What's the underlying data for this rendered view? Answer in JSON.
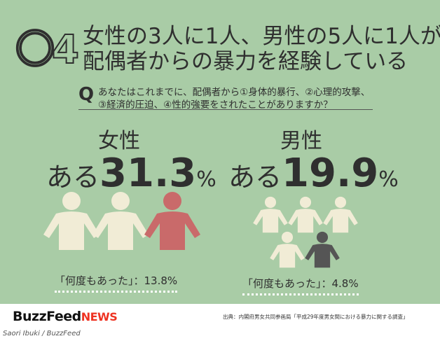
{
  "header": {
    "number": "〇4",
    "title_line1": "女性の3人に1人、男性の5人に1人が",
    "title_line2": "配偶者からの暴力を経験している"
  },
  "question": {
    "mark": "Q",
    "line1": "あなたはこれまでに、配偶者から①身体的暴行、②心理的攻撃、",
    "line2": "③経済的圧迫、④性的強要をされたことがありますか？"
  },
  "panels": [
    {
      "label": "女性",
      "prefix": "ある",
      "value": "31.3",
      "unit": "%",
      "repeat": "「何度もあった」：13.8%"
    },
    {
      "label": "男性",
      "prefix": "ある",
      "value": "19.9",
      "unit": "%",
      "repeat": "「何度もあった」：4.8%"
    }
  ],
  "footer": {
    "logo": "BuzzFeed",
    "logo_suffix": "NEWS",
    "source": "出典：内閣府男女共同参画局「平成29年度男女間における暴力に関する調査」"
  },
  "credit": "Saori Ibuki / BuzzFeed"
}
